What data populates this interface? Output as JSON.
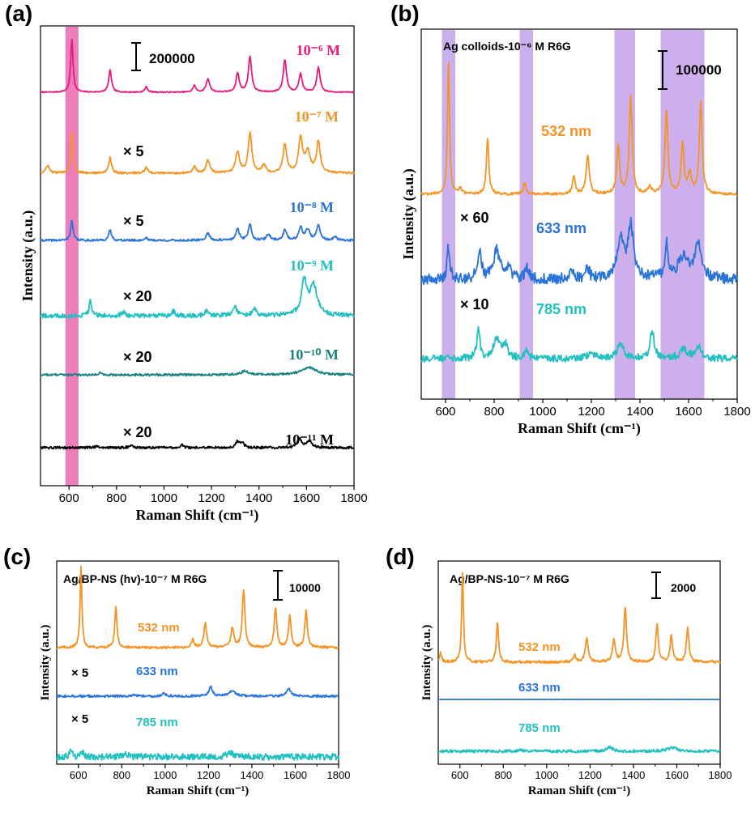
{
  "figure": {
    "panels": [
      {
        "id": "a",
        "label": "(a)",
        "xlabel": "Raman Shift (cm⁻¹)",
        "ylabel": "Intensity (a.u.)",
        "scale_bar": "200000",
        "xlim": [
          480,
          1800
        ],
        "xticks": [
          600,
          800,
          1000,
          1200,
          1400,
          1600,
          1800
        ]
      },
      {
        "id": "b",
        "label": "(b)",
        "title": "Ag colloids-10⁻⁶ M R6G",
        "xlabel": "Raman Shift (cm⁻¹)",
        "ylabel": "Intensity (a.u.)",
        "scale_bar": "100000",
        "xlim": [
          500,
          1800
        ],
        "xticks": [
          600,
          800,
          1000,
          1200,
          1400,
          1600,
          1800
        ]
      },
      {
        "id": "c",
        "label": "(c)",
        "title": "Ag/BP-NS (hv)-10⁻⁷ M R6G",
        "xlabel": "Raman Shift (cm⁻¹)",
        "ylabel": "Intensity (a.u.)",
        "scale_bar": "10000",
        "xlim": [
          500,
          1800
        ],
        "xticks": [
          600,
          800,
          1000,
          1200,
          1400,
          1600,
          1800
        ]
      },
      {
        "id": "d",
        "label": "(d)",
        "title": "Ag/BP-NS-10⁻⁷ M R6G",
        "xlabel": "Raman Shift (cm⁻¹)",
        "ylabel": "Intensity (a.u.)",
        "scale_bar": "2000",
        "xlim": [
          500,
          1800
        ],
        "xticks": [
          600,
          800,
          1000,
          1200,
          1400,
          1600,
          1800
        ]
      }
    ]
  },
  "chart_data": [
    {
      "panel": "a",
      "type": "line",
      "xlabel": "Raman Shift (cm⁻¹)",
      "ylabel": "Intensity (a.u.)",
      "xlim": [
        480,
        1800
      ],
      "highlight_band": [
        585,
        640
      ],
      "highlight_color": "#ec6fb4",
      "series": [
        {
          "name": "10⁻⁶ M",
          "color": "#e8197d",
          "multiplier": "",
          "noise": 0.01,
          "peaks": [
            [
              612,
              1.0,
              6
            ],
            [
              773,
              0.42,
              7
            ],
            [
              925,
              0.1,
              7
            ],
            [
              1128,
              0.13,
              7
            ],
            [
              1185,
              0.25,
              9
            ],
            [
              1310,
              0.36,
              8
            ],
            [
              1362,
              0.68,
              8
            ],
            [
              1509,
              0.62,
              8
            ],
            [
              1575,
              0.35,
              8
            ],
            [
              1650,
              0.48,
              8
            ]
          ]
        },
        {
          "name": "10⁻⁷ M",
          "color": "#f39424",
          "multiplier": "× 5",
          "noise": 0.02,
          "peaks": [
            [
              510,
              0.15,
              8
            ],
            [
              612,
              0.8,
              6
            ],
            [
              773,
              0.3,
              7
            ],
            [
              925,
              0.12,
              7
            ],
            [
              1128,
              0.12,
              8
            ],
            [
              1185,
              0.25,
              9
            ],
            [
              1310,
              0.4,
              10
            ],
            [
              1362,
              0.75,
              9
            ],
            [
              1420,
              0.15,
              10
            ],
            [
              1509,
              0.55,
              9
            ],
            [
              1575,
              0.65,
              10
            ],
            [
              1605,
              0.4,
              12
            ],
            [
              1650,
              0.6,
              9
            ]
          ]
        },
        {
          "name": "10⁻⁸ M",
          "color": "#2a73d9",
          "multiplier": "× 5",
          "noise": 0.03,
          "peaks": [
            [
              612,
              0.55,
              6
            ],
            [
              773,
              0.28,
              7
            ],
            [
              925,
              0.08,
              7
            ],
            [
              1185,
              0.2,
              9
            ],
            [
              1310,
              0.3,
              9
            ],
            [
              1362,
              0.45,
              8
            ],
            [
              1440,
              0.15,
              10
            ],
            [
              1509,
              0.3,
              8
            ],
            [
              1575,
              0.35,
              9
            ],
            [
              1605,
              0.3,
              10
            ],
            [
              1650,
              0.4,
              9
            ],
            [
              1720,
              0.1,
              8
            ]
          ]
        },
        {
          "name": "10⁻⁹ M",
          "color": "#22c0c0",
          "multiplier": "× 20",
          "noise": 0.05,
          "peaks": [
            [
              690,
              0.35,
              6
            ],
            [
              830,
              0.08,
              8
            ],
            [
              1040,
              0.1,
              8
            ],
            [
              1180,
              0.1,
              9
            ],
            [
              1300,
              0.18,
              10
            ],
            [
              1380,
              0.15,
              10
            ],
            [
              1590,
              0.75,
              14
            ],
            [
              1630,
              0.65,
              18
            ]
          ]
        },
        {
          "name": "10⁻¹⁰ M",
          "color": "#18837e",
          "multiplier": "× 20",
          "noise": 0.03,
          "peaks": [
            [
              730,
              0.06,
              8
            ],
            [
              1340,
              0.1,
              20
            ],
            [
              1610,
              0.2,
              35
            ]
          ]
        },
        {
          "name": "10⁻¹¹ M",
          "color": "#000000",
          "multiplier": "× 20",
          "noise": 0.05,
          "peaks": [
            [
              720,
              0.08,
              8
            ],
            [
              860,
              0.1,
              8
            ],
            [
              1075,
              0.12,
              7
            ],
            [
              1310,
              0.25,
              10
            ],
            [
              1330,
              0.2,
              8
            ],
            [
              1570,
              0.35,
              10
            ],
            [
              1610,
              0.28,
              14
            ]
          ]
        }
      ]
    },
    {
      "panel": "b",
      "type": "line",
      "title": "Ag colloids-10⁻⁶ M R6G",
      "xlabel": "Raman Shift (cm⁻¹)",
      "ylabel": "Intensity (a.u.)",
      "xlim": [
        500,
        1800
      ],
      "highlight_bands": [
        [
          585,
          640
        ],
        [
          905,
          960
        ],
        [
          1295,
          1380
        ],
        [
          1485,
          1665
        ]
      ],
      "highlight_color": "#c6a6ea",
      "series": [
        {
          "name": "532 nm",
          "color": "#f39424",
          "multiplier": "",
          "noise": 0.01,
          "peaks": [
            [
              612,
              1.0,
              5
            ],
            [
              660,
              0.05,
              6
            ],
            [
              773,
              0.42,
              6
            ],
            [
              925,
              0.08,
              7
            ],
            [
              1128,
              0.13,
              7
            ],
            [
              1185,
              0.28,
              8
            ],
            [
              1310,
              0.36,
              7
            ],
            [
              1362,
              0.74,
              7
            ],
            [
              1440,
              0.05,
              8
            ],
            [
              1509,
              0.63,
              7
            ],
            [
              1575,
              0.38,
              7
            ],
            [
              1605,
              0.15,
              8
            ],
            [
              1650,
              0.68,
              7
            ]
          ]
        },
        {
          "name": "633 nm",
          "color": "#2a73d9",
          "multiplier": "× 60",
          "noise": 0.06,
          "peaks": [
            [
              612,
              0.35,
              6
            ],
            [
              740,
              0.28,
              10
            ],
            [
              810,
              0.32,
              15
            ],
            [
              860,
              0.1,
              12
            ],
            [
              935,
              0.12,
              10
            ],
            [
              1120,
              0.1,
              8
            ],
            [
              1185,
              0.12,
              8
            ],
            [
              1320,
              0.45,
              15
            ],
            [
              1362,
              0.55,
              14
            ],
            [
              1510,
              0.35,
              8
            ],
            [
              1580,
              0.25,
              25
            ],
            [
              1640,
              0.35,
              15
            ]
          ]
        },
        {
          "name": "785 nm",
          "color": "#22c0c0",
          "multiplier": "× 10",
          "noise": 0.05,
          "peaks": [
            [
              612,
              0.08,
              6
            ],
            [
              735,
              0.38,
              8
            ],
            [
              810,
              0.28,
              15
            ],
            [
              845,
              0.18,
              12
            ],
            [
              935,
              0.1,
              10
            ],
            [
              1200,
              0.1,
              12
            ],
            [
              1320,
              0.22,
              15
            ],
            [
              1450,
              0.38,
              10
            ],
            [
              1580,
              0.12,
              20
            ],
            [
              1640,
              0.15,
              15
            ]
          ]
        }
      ]
    },
    {
      "panel": "c",
      "type": "line",
      "title": "Ag/BP-NS (hv)-10⁻⁷ M R6G",
      "xlabel": "Raman Shift (cm⁻¹)",
      "ylabel": "Intensity (a.u.)",
      "xlim": [
        500,
        1800
      ],
      "series": [
        {
          "name": "532 nm",
          "color": "#f39424",
          "multiplier": "",
          "noise": 0.015,
          "peaks": [
            [
              612,
              1.0,
              5
            ],
            [
              773,
              0.5,
              6
            ],
            [
              1128,
              0.1,
              7
            ],
            [
              1185,
              0.3,
              8
            ],
            [
              1310,
              0.25,
              8
            ],
            [
              1362,
              0.72,
              7
            ],
            [
              1509,
              0.5,
              7
            ],
            [
              1575,
              0.4,
              7
            ],
            [
              1650,
              0.45,
              7
            ]
          ]
        },
        {
          "name": "633 nm",
          "color": "#2a73d9",
          "multiplier": "× 5",
          "noise": 0.035,
          "peaks": [
            [
              860,
              0.05,
              8
            ],
            [
              995,
              0.1,
              8
            ],
            [
              1210,
              0.3,
              9
            ],
            [
              1310,
              0.15,
              20
            ],
            [
              1570,
              0.22,
              13
            ]
          ]
        },
        {
          "name": "785 nm",
          "color": "#22c0c0",
          "multiplier": "× 5",
          "noise": 0.1,
          "peaks": [
            [
              565,
              0.22,
              6
            ],
            [
              620,
              0.15,
              8
            ],
            [
              820,
              0.1,
              10
            ],
            [
              1300,
              0.15,
              15
            ]
          ]
        }
      ]
    },
    {
      "panel": "d",
      "type": "line",
      "title": "Ag/BP-NS-10⁻⁷ M R6G",
      "xlabel": "Raman Shift (cm⁻¹)",
      "ylabel": "Intensity (a.u.)",
      "xlim": [
        500,
        1800
      ],
      "series": [
        {
          "name": "532 nm",
          "color": "#f39424",
          "multiplier": "",
          "noise": 0.015,
          "peaks": [
            [
              510,
              0.1,
              6
            ],
            [
              612,
              1.0,
              5
            ],
            [
              773,
              0.45,
              6
            ],
            [
              1128,
              0.08,
              7
            ],
            [
              1185,
              0.27,
              8
            ],
            [
              1310,
              0.25,
              8
            ],
            [
              1362,
              0.62,
              7
            ],
            [
              1509,
              0.42,
              7
            ],
            [
              1575,
              0.3,
              7
            ],
            [
              1650,
              0.38,
              7
            ]
          ]
        },
        {
          "name": "633 nm",
          "color": "#2a73d9",
          "multiplier": "",
          "noise": 0.01,
          "peaks": []
        },
        {
          "name": "785 nm",
          "color": "#22c0c0",
          "multiplier": "",
          "noise": 0.06,
          "peaks": [
            [
              880,
              0.06,
              12
            ],
            [
              1290,
              0.18,
              15
            ],
            [
              1580,
              0.15,
              25
            ]
          ]
        }
      ]
    }
  ]
}
